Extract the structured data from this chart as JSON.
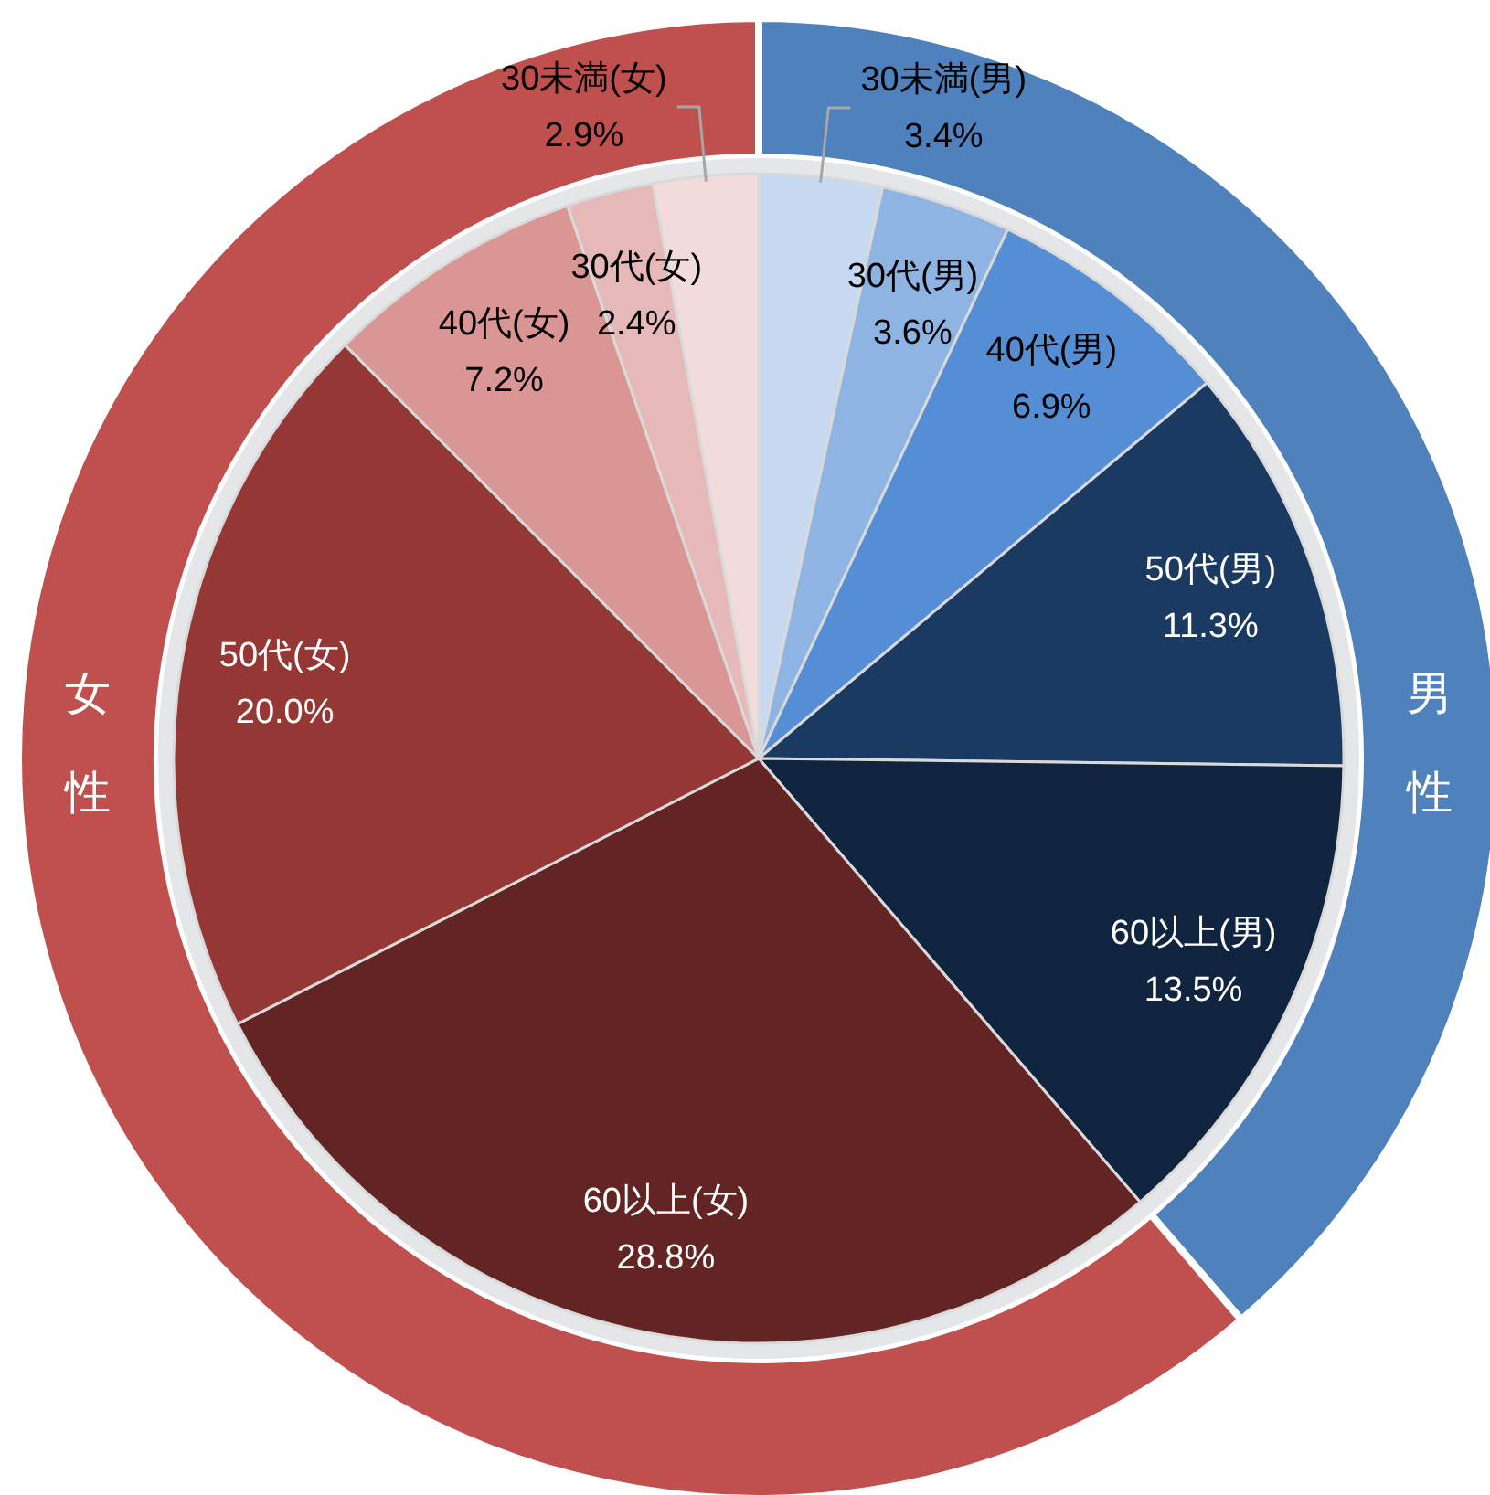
{
  "chart_data": [
    {
      "type": "pie",
      "categories": [
        "30未満(男)",
        "30代(男)",
        "40代(男)",
        "50代(男)",
        "60以上(男)",
        "60以上(女)",
        "50代(女)",
        "40代(女)",
        "30代(女)",
        "30未満(女)"
      ],
      "values": [
        3.4,
        3.6,
        6.9,
        11.3,
        13.5,
        28.8,
        20.0,
        7.2,
        2.4,
        2.9
      ],
      "colors": [
        "#c6d9f1",
        "#8db4e2",
        "#558ed5",
        "#1b3a62",
        "#10243f",
        "#632523",
        "#953735",
        "#d99694",
        "#e6b9b8",
        "#f2dcdb"
      ],
      "value_labels": [
        "3.4%",
        "3.6%",
        "6.9%",
        "11.3%",
        "13.5%",
        "28.8%",
        "20.0%",
        "7.2%",
        "2.4%",
        "2.9%"
      ]
    },
    {
      "type": "donut",
      "categories": [
        "男性",
        "女性"
      ],
      "values": [
        38.7,
        61.3
      ],
      "colors": [
        "#4f81bd",
        "#c0504d"
      ]
    }
  ]
}
